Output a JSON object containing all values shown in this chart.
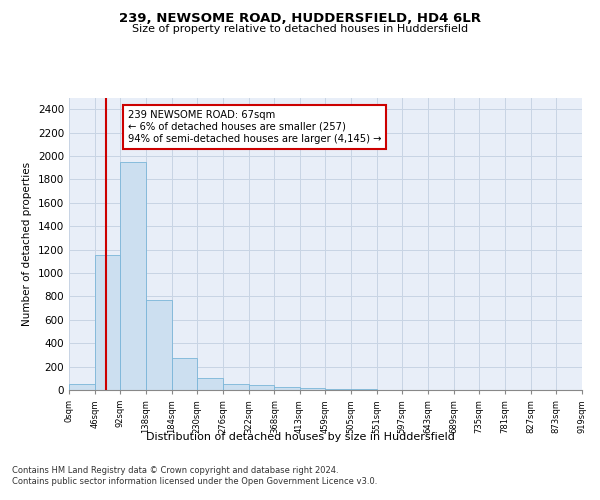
{
  "title1": "239, NEWSOME ROAD, HUDDERSFIELD, HD4 6LR",
  "title2": "Size of property relative to detached houses in Huddersfield",
  "xlabel": "Distribution of detached houses by size in Huddersfield",
  "ylabel": "Number of detached properties",
  "bar_color": "#ccdff0",
  "bar_edge_color": "#7ab5d8",
  "grid_color": "#c8d4e4",
  "background_color": "#e8eef8",
  "annotation_text": "239 NEWSOME ROAD: 67sqm\n← 6% of detached houses are smaller (257)\n94% of semi-detached houses are larger (4,145) →",
  "annotation_box_color": "#ffffff",
  "annotation_box_edge": "#cc0000",
  "vline_x": 67,
  "vline_color": "#cc0000",
  "bin_edges": [
    0,
    46,
    92,
    138,
    184,
    230,
    276,
    322,
    368,
    413,
    459,
    505,
    551,
    597,
    643,
    689,
    735,
    781,
    827,
    873,
    919
  ],
  "bar_heights": [
    50,
    1150,
    1950,
    770,
    275,
    100,
    55,
    40,
    25,
    15,
    10,
    5,
    3,
    2,
    2,
    1,
    1,
    0,
    0,
    0
  ],
  "ylim": [
    0,
    2500
  ],
  "yticks": [
    0,
    200,
    400,
    600,
    800,
    1000,
    1200,
    1400,
    1600,
    1800,
    2000,
    2200,
    2400
  ],
  "tick_labels": [
    "0sqm",
    "46sqm",
    "92sqm",
    "138sqm",
    "184sqm",
    "230sqm",
    "276sqm",
    "322sqm",
    "368sqm",
    "413sqm",
    "459sqm",
    "505sqm",
    "551sqm",
    "597sqm",
    "643sqm",
    "689sqm",
    "735sqm",
    "781sqm",
    "827sqm",
    "873sqm",
    "919sqm"
  ],
  "footer_line1": "Contains HM Land Registry data © Crown copyright and database right 2024.",
  "footer_line2": "Contains public sector information licensed under the Open Government Licence v3.0."
}
